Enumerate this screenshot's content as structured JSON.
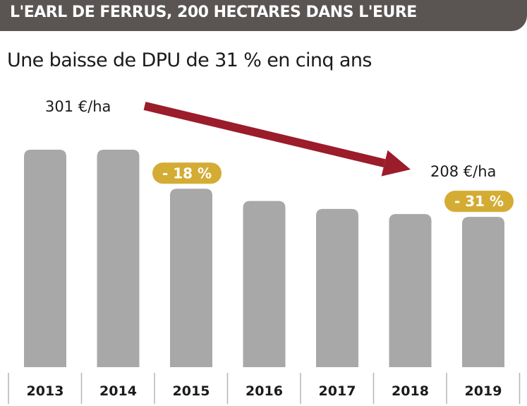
{
  "header": {
    "title": "L'EARL DE FERRUS, 200 HECTARES DANS L'EURE"
  },
  "chart_data": {
    "type": "bar",
    "title": "Une baisse de DPU de 31 % en cinq ans",
    "categories": [
      "2013",
      "2014",
      "2015",
      "2016",
      "2017",
      "2018",
      "2019"
    ],
    "series": [
      {
        "values": [
          301,
          301,
          247,
          230,
          219,
          212,
          208
        ]
      }
    ],
    "unit": "€/ha",
    "ylim": [
      0,
      320
    ],
    "grid": false,
    "annotations": {
      "start_value_label": "301 €/ha",
      "end_value_label": "208 €/ha",
      "badges": [
        {
          "category": "2015",
          "text": "- 18 %"
        },
        {
          "category": "2019",
          "text": "- 31 %"
        }
      ]
    },
    "colors": {
      "bar": "#a9a8a8",
      "arrow": "#9b1c2b",
      "badge": "#d4ac33",
      "header": "#5a5453",
      "separator": "#b5b5b5"
    }
  }
}
